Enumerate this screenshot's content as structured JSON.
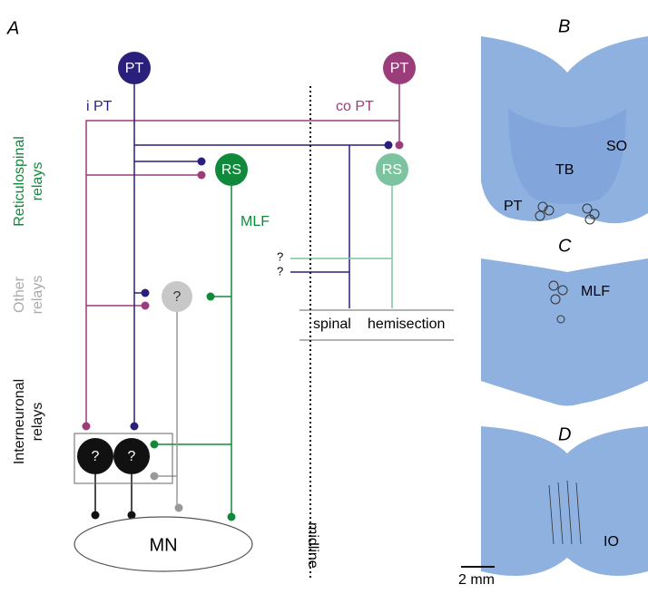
{
  "panel_a": {
    "label": "A",
    "side_labels": {
      "reticulospinal": [
        "Reticulospinal",
        "relays"
      ],
      "other": [
        "Other",
        "relays"
      ],
      "interneuronal": [
        "Interneuronal",
        "relays"
      ]
    },
    "nodes": {
      "ipt_circle": "PT",
      "copt_circle": "PT",
      "rs_ipsi": "RS",
      "rs_contra": "RS",
      "other_relay": "?",
      "interneuron_1": "?",
      "interneuron_2": "?",
      "mn": "MN"
    },
    "path_labels": {
      "ipt": "i PT",
      "copt": "co PT",
      "mlf": "MLF",
      "q1": "?",
      "q2": "?"
    },
    "lesion": [
      "spinal",
      "hemisection"
    ],
    "midline": "midline"
  },
  "panel_b": {
    "label": "B",
    "regions": [
      "SO",
      "TB",
      "PT"
    ]
  },
  "panel_c": {
    "label": "C",
    "regions": [
      "MLF"
    ]
  },
  "panel_d": {
    "label": "D",
    "regions": [
      "IO"
    ],
    "scale_bar": "2 mm"
  }
}
